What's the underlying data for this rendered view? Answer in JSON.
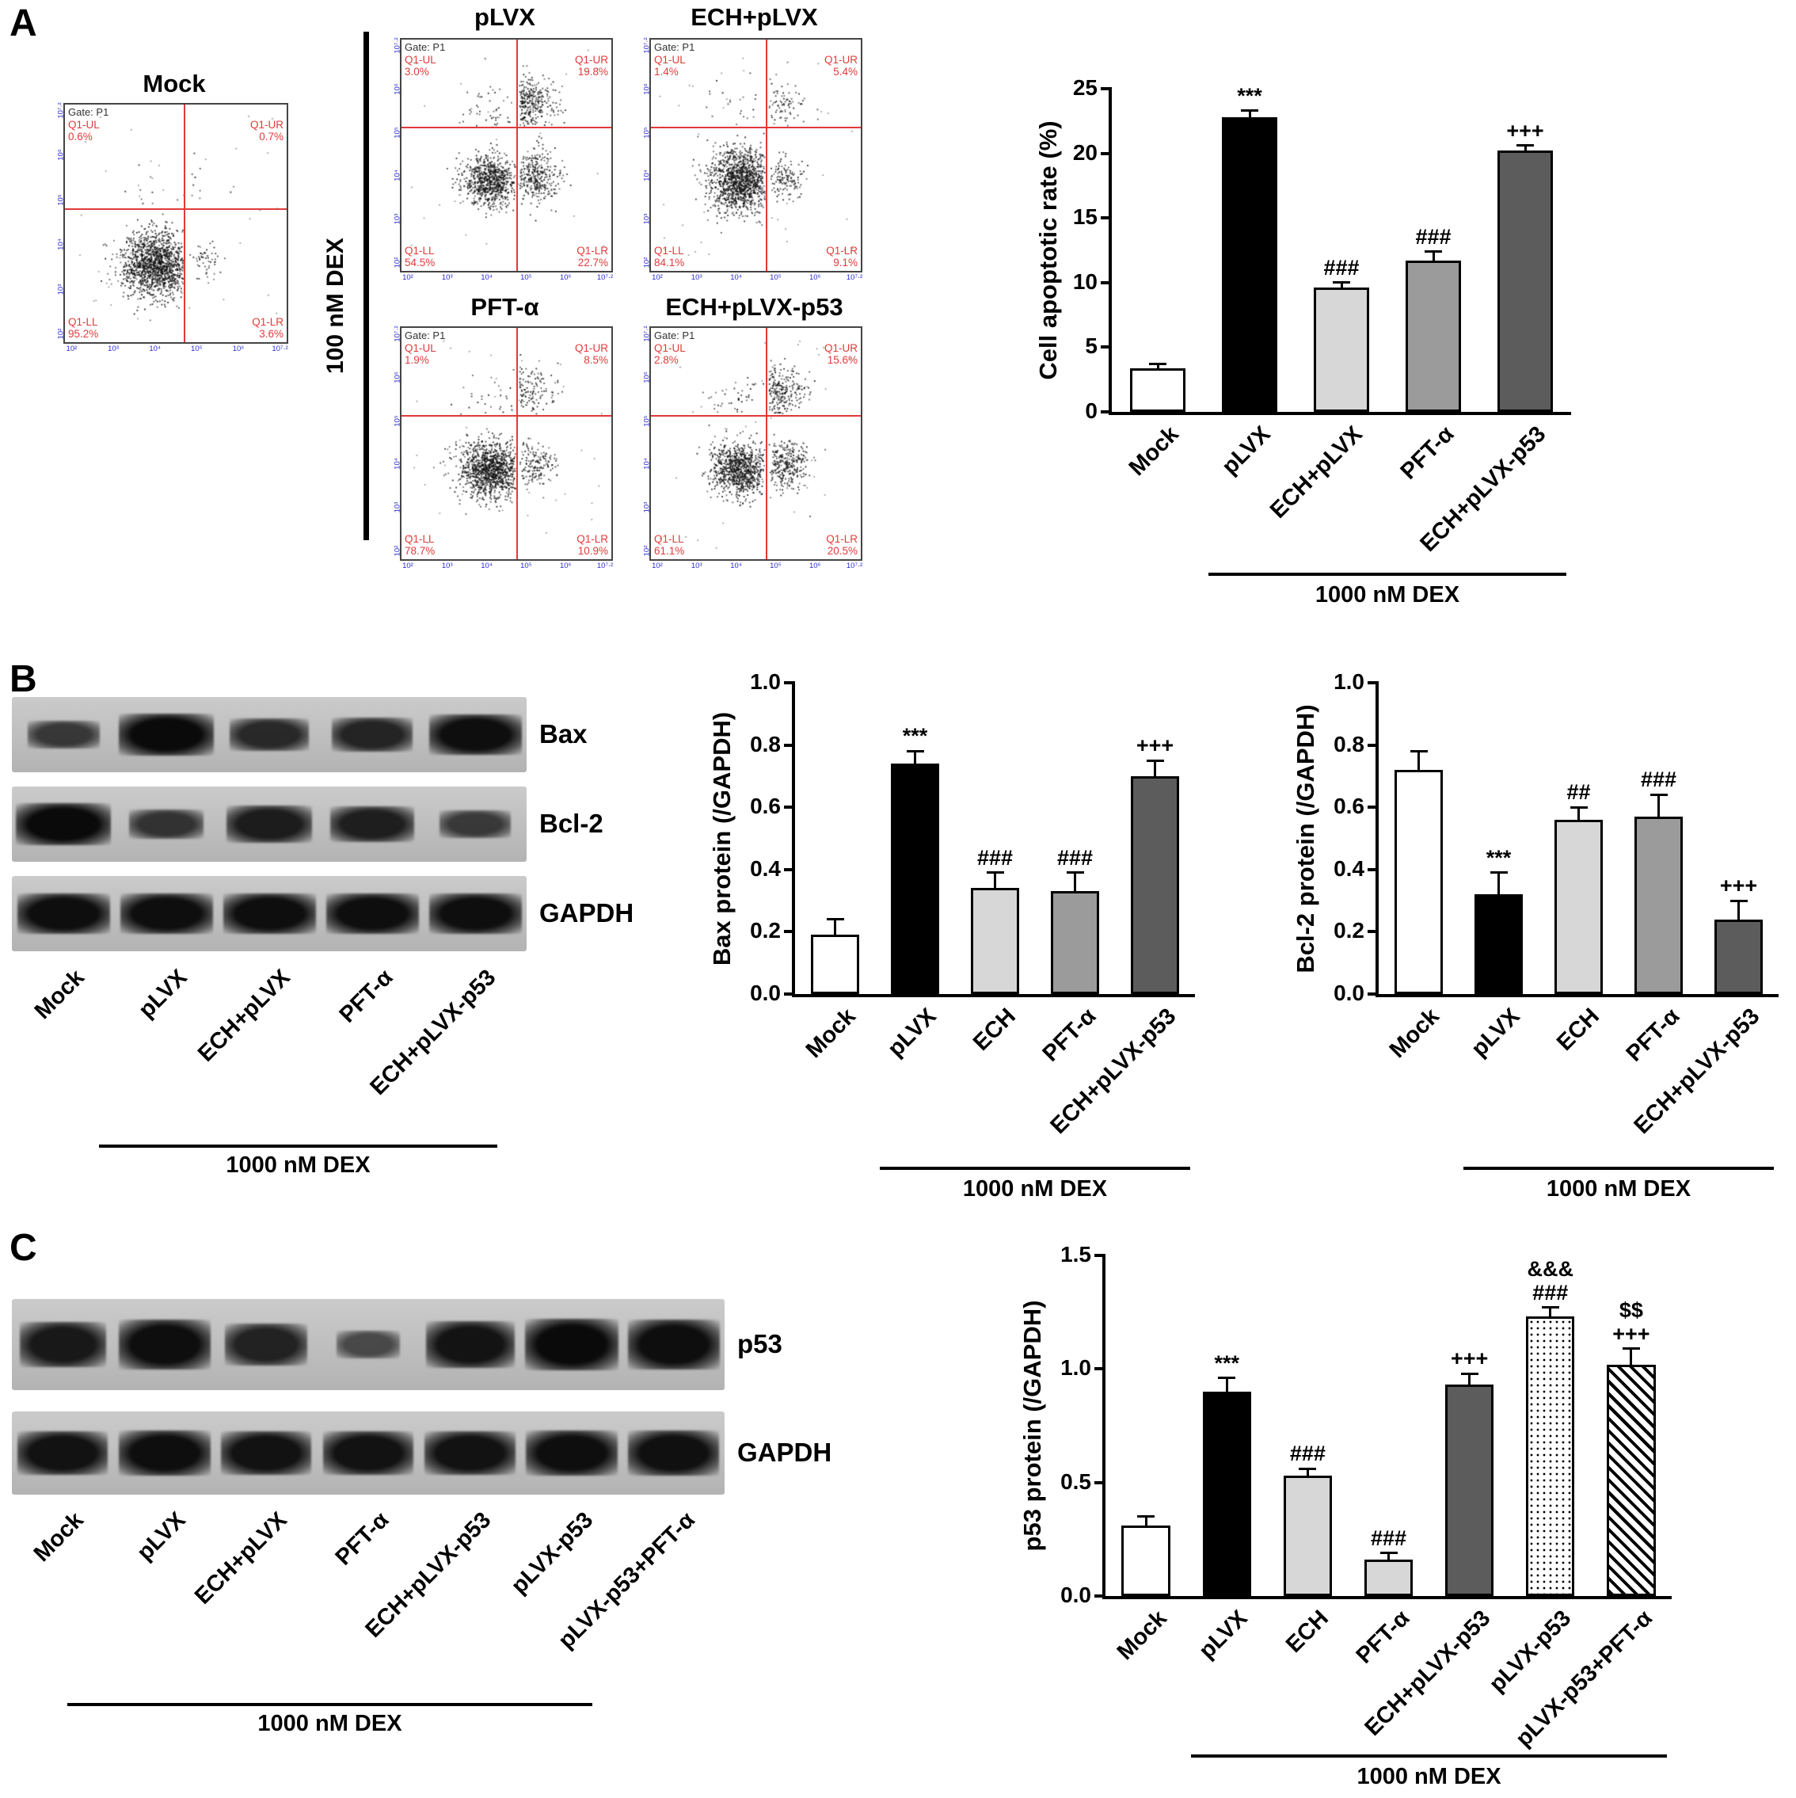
{
  "figure_labels": {
    "a": "A",
    "b": "B",
    "c": "C"
  },
  "panelA": {
    "dex_vertical_label": "100 nM DEX",
    "gate_label": "Gate: P1",
    "quad_labels": {
      "ul": "Q1-UL",
      "ur": "Q1-UR",
      "ll": "Q1-LL",
      "lr": "Q1-LR"
    },
    "axis_ticks": [
      "10²",
      "10³",
      "10⁴",
      "10⁵",
      "10⁶",
      "10⁷·²"
    ],
    "flow_plots": [
      {
        "title": "Mock",
        "ul_pct": "0.6%",
        "ur_pct": "0.7%",
        "ll_pct": "95.2%",
        "lr_pct": "3.6%"
      },
      {
        "title": "pLVX",
        "ul_pct": "3.0%",
        "ur_pct": "19.8%",
        "ll_pct": "54.5%",
        "lr_pct": "22.7%"
      },
      {
        "title": "ECH+pLVX",
        "ul_pct": "1.4%",
        "ur_pct": "5.4%",
        "ll_pct": "84.1%",
        "lr_pct": "9.1%"
      },
      {
        "title": "PFT-α",
        "ul_pct": "1.9%",
        "ur_pct": "8.5%",
        "ll_pct": "78.7%",
        "lr_pct": "10.9%"
      },
      {
        "title": "ECH+pLVX-p53",
        "ul_pct": "2.8%",
        "ur_pct": "15.6%",
        "ll_pct": "61.1%",
        "lr_pct": "20.5%"
      }
    ]
  },
  "panelB": {
    "lane_labels": [
      "Mock",
      "pLVX",
      "ECH+pLVX",
      "PFT-α",
      "ECH+pLVX-p53"
    ],
    "group_label": "1000 nM DEX",
    "blot_rows": [
      {
        "label": "Bax",
        "intensities": [
          0.45,
          1.0,
          0.62,
          0.68,
          0.95
        ]
      },
      {
        "label": "Bcl-2",
        "intensities": [
          1.0,
          0.5,
          0.78,
          0.75,
          0.42
        ]
      },
      {
        "label": "GAPDH",
        "intensities": [
          0.95,
          0.95,
          0.95,
          0.95,
          0.95
        ]
      }
    ]
  },
  "panelC": {
    "lane_labels": [
      "Mock",
      "pLVX",
      "ECH+pLVX",
      "PFT-α",
      "ECH+pLVX-p53",
      "pLVX-p53",
      "pLVX-p53+PFT-α"
    ],
    "group_label": "1000 nM DEX",
    "blot_rows": [
      {
        "label": "p53",
        "intensities": [
          0.82,
          0.95,
          0.72,
          0.25,
          0.88,
          1.0,
          0.95
        ]
      },
      {
        "label": "GAPDH",
        "intensities": [
          0.92,
          0.95,
          0.92,
          0.9,
          0.92,
          0.95,
          0.93
        ]
      }
    ]
  },
  "chart_data": [
    {
      "id": "apoptotic_rate",
      "type": "bar",
      "title": "",
      "ylabel": "Cell apoptotic rate (%)",
      "xlabel": "",
      "categories": [
        "Mock",
        "pLVX",
        "ECH+pLVX",
        "PFT-α",
        "ECH+pLVX-p53"
      ],
      "values": [
        3.4,
        22.8,
        9.6,
        11.7,
        20.2
      ],
      "errors": [
        0.3,
        0.5,
        0.4,
        0.7,
        0.4
      ],
      "annotations": [
        [],
        [
          "***"
        ],
        [
          "###"
        ],
        [
          "###"
        ],
        [
          "+++"
        ]
      ],
      "bar_styles": [
        "white",
        "black",
        "lightgray",
        "gray",
        "darkgray"
      ],
      "ylim": [
        0,
        25
      ],
      "ytick_labels": [
        "0",
        "5",
        "10",
        "15",
        "20",
        "25"
      ],
      "grid": false,
      "legend": "none",
      "group_label": "1000 nM DEX",
      "group_span": [
        1,
        4
      ]
    },
    {
      "id": "bax",
      "type": "bar",
      "title": "",
      "ylabel": "Bax protein (/GAPDH)",
      "xlabel": "",
      "categories": [
        "Mock",
        "pLVX",
        "ECH",
        "PFT-α",
        "ECH+pLVX-p53"
      ],
      "values": [
        0.19,
        0.74,
        0.34,
        0.33,
        0.7
      ],
      "errors": [
        0.05,
        0.04,
        0.05,
        0.06,
        0.05
      ],
      "annotations": [
        [],
        [
          "***"
        ],
        [
          "###"
        ],
        [
          "###"
        ],
        [
          "+++"
        ]
      ],
      "bar_styles": [
        "white",
        "black",
        "lightgray",
        "gray",
        "darkgray"
      ],
      "ylim": [
        0,
        1.0
      ],
      "ytick_labels": [
        "0.0",
        "0.2",
        "0.4",
        "0.6",
        "0.8",
        "1.0"
      ],
      "grid": false,
      "legend": "none",
      "group_label": "1000 nM DEX",
      "group_span": [
        1,
        4
      ]
    },
    {
      "id": "bcl2",
      "type": "bar",
      "title": "",
      "ylabel": "Bcl-2 protein (/GAPDH)",
      "xlabel": "",
      "categories": [
        "Mock",
        "pLVX",
        "ECH",
        "PFT-α",
        "ECH+pLVX-p53"
      ],
      "values": [
        0.72,
        0.32,
        0.56,
        0.57,
        0.24
      ],
      "errors": [
        0.06,
        0.07,
        0.04,
        0.07,
        0.06
      ],
      "annotations": [
        [],
        [
          "***"
        ],
        [
          "##"
        ],
        [
          "###"
        ],
        [
          "+++"
        ]
      ],
      "bar_styles": [
        "white",
        "black",
        "lightgray",
        "gray",
        "darkgray"
      ],
      "ylim": [
        0,
        1.0
      ],
      "ytick_labels": [
        "0.0",
        "0.2",
        "0.4",
        "0.6",
        "0.8",
        "1.0"
      ],
      "grid": false,
      "legend": "none",
      "group_label": "1000 nM DEX",
      "group_span": [
        1,
        4
      ]
    },
    {
      "id": "p53",
      "type": "bar",
      "title": "",
      "ylabel": "p53 protein (/GAPDH)",
      "xlabel": "",
      "categories": [
        "Mock",
        "pLVX",
        "ECH",
        "PFT-α",
        "ECH+pLVX-p53",
        "pLVX-p53",
        "pLVX-p53+PFT-α"
      ],
      "values": [
        0.31,
        0.9,
        0.53,
        0.16,
        0.93,
        1.23,
        1.02
      ],
      "errors": [
        0.04,
        0.06,
        0.03,
        0.03,
        0.05,
        0.04,
        0.07
      ],
      "annotations": [
        [],
        [
          "***"
        ],
        [
          "###"
        ],
        [
          "###"
        ],
        [
          "+++"
        ],
        [
          "&&&",
          "###"
        ],
        [
          "$$",
          "+++"
        ]
      ],
      "bar_styles": [
        "white",
        "black",
        "lightgray",
        "lightgray",
        "darkgray",
        "dots",
        "hatch"
      ],
      "ylim": [
        0,
        1.5
      ],
      "ytick_labels": [
        "0.0",
        "0.5",
        "1.0",
        "1.5"
      ],
      "grid": false,
      "legend": "none",
      "group_label": "1000 nM DEX",
      "group_span": [
        1,
        6
      ]
    }
  ]
}
